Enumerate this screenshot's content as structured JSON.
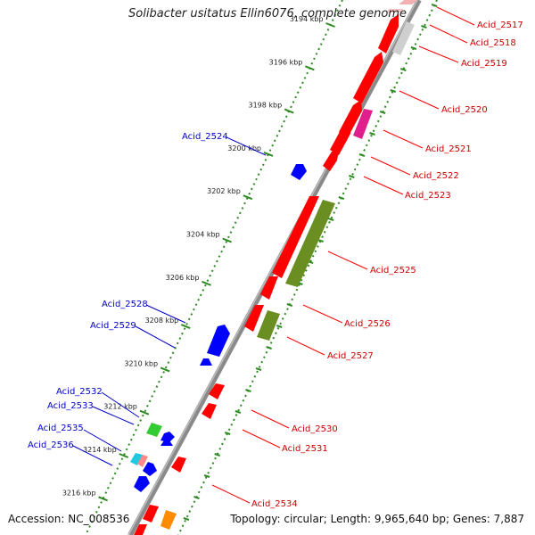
{
  "title": "Solibacter usitatus Ellin6076, complete genome",
  "footer": {
    "accession": "Accession: NC_008536",
    "topology": "Topology: circular; Length: 9,965,640 bp; Genes: 7,887"
  },
  "colors": {
    "backbone": "#8a8a8a",
    "tick_ring": "#2e8b22",
    "forward_cds": "#ff0000",
    "reverse_cds": "#0000ff",
    "other_forward": "#6b8e23",
    "highlight": "#e01e8c",
    "faint": "#d0d0d0",
    "forward_label": "#cc0000",
    "reverse_label": "#0000cc"
  },
  "kbp_labels": [
    "3194 kbp",
    "3196 kbp",
    "3198 kbp",
    "3200 kbp",
    "3202 kbp",
    "3204 kbp",
    "3206 kbp",
    "3208 kbp",
    "3210 kbp",
    "3212 kbp",
    "3214 kbp",
    "3216 kbp"
  ],
  "forward_labels": [
    "Acid_2517",
    "Acid_2518",
    "Acid_2519",
    "Acid_2520",
    "Acid_2521",
    "Acid_2522",
    "Acid_2523",
    "Acid_2525",
    "Acid_2526",
    "Acid_2527",
    "Acid_2530",
    "Acid_2531",
    "Acid_2534"
  ],
  "reverse_labels": [
    "Acid_2524",
    "Acid_2528",
    "Acid_2529",
    "Acid_2532",
    "Acid_2533",
    "Acid_2535",
    "Acid_2536"
  ]
}
